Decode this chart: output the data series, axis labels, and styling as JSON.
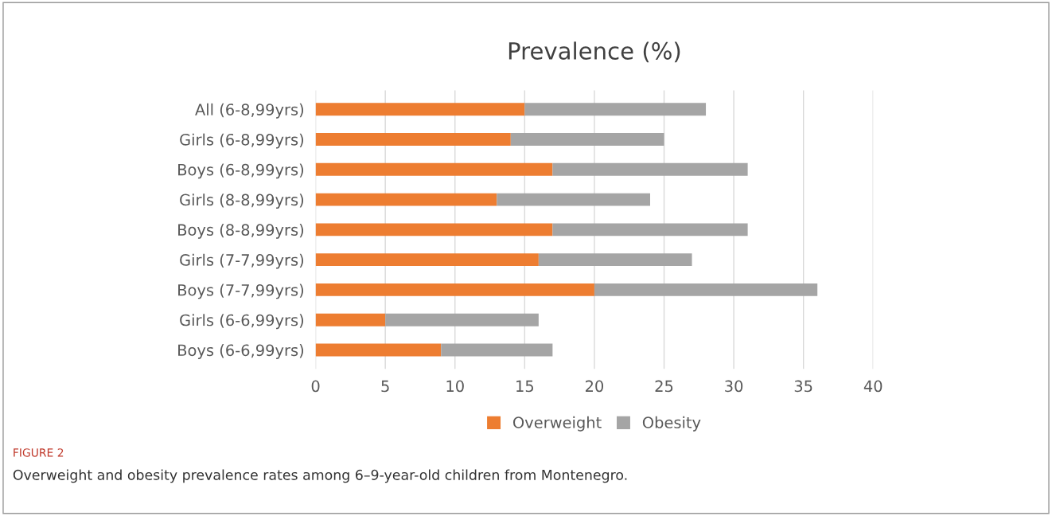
{
  "chart_data": {
    "type": "bar",
    "orientation": "horizontal",
    "stacked": true,
    "title": "Prevalence (%)",
    "categories": [
      "All (6-8,99yrs)",
      "Girls (6-8,99yrs)",
      "Boys (6-8,99yrs)",
      "Girls (8-8,99yrs)",
      "Boys (8-8,99yrs)",
      "Girls (7-7,99yrs)",
      "Boys (7-7,99yrs)",
      "Girls (6-6,99yrs)",
      "Boys (6-6,99yrs)"
    ],
    "series": [
      {
        "name": "Overweight",
        "color": "#ed7d31",
        "values": [
          15,
          14,
          17,
          13,
          17,
          16,
          20,
          5,
          9
        ]
      },
      {
        "name": "Obesity",
        "color": "#a5a5a5",
        "values": [
          13,
          11,
          14,
          11,
          14,
          11,
          16,
          11,
          8
        ]
      }
    ],
    "xlim": [
      0,
      40
    ],
    "xticks": [
      0,
      5,
      10,
      15,
      20,
      25,
      30,
      35,
      40
    ],
    "grid": "x",
    "legend": "bottom",
    "annotations": [
      "FIGURE 2",
      "Overweight and obesity prevalence rates among 6–9-year-old children from Montenegro."
    ]
  }
}
